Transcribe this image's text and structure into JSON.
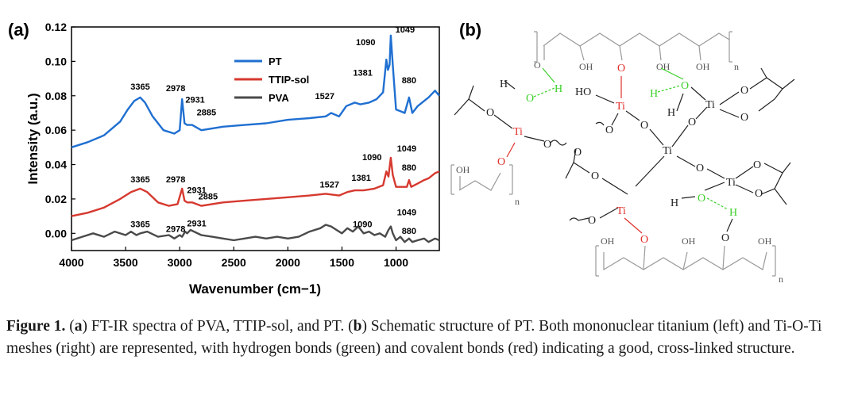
{
  "panel_a_label": "(a)",
  "panel_b_label": "(b)",
  "chart_data": {
    "type": "line",
    "title": "",
    "xlabel": "Wavenumber (cm−1)",
    "ylabel": "Intensity (a.u.)",
    "xlim": [
      4000,
      600
    ],
    "ylim": [
      -0.01,
      0.12
    ],
    "xticks": [
      4000,
      3500,
      3000,
      2500,
      2000,
      1500,
      1000
    ],
    "xtick_labels": [
      "4000",
      "3500",
      "3000",
      "2500",
      "2000",
      "1500",
      "1000"
    ],
    "yticks": [
      0.0,
      0.02,
      0.04,
      0.06,
      0.08,
      0.1,
      0.12
    ],
    "ytick_labels": [
      "0.00",
      "0.02",
      "0.04",
      "0.06",
      "0.08",
      "0.10",
      "0.12"
    ],
    "legend_position": "upper-center",
    "series": [
      {
        "name": "PT",
        "color": "#1f6fd1",
        "x": [
          4000,
          3850,
          3700,
          3550,
          3480,
          3420,
          3365,
          3320,
          3250,
          3150,
          3050,
          3000,
          2978,
          2955,
          2931,
          2885,
          2800,
          2600,
          2400,
          2200,
          2000,
          1800,
          1650,
          1600,
          1527,
          1460,
          1381,
          1330,
          1250,
          1180,
          1120,
          1090,
          1075,
          1060,
          1049,
          1030,
          1000,
          960,
          920,
          880,
          850,
          800,
          740,
          700,
          640,
          600
        ],
        "y": [
          0.05,
          0.053,
          0.057,
          0.065,
          0.072,
          0.077,
          0.079,
          0.076,
          0.068,
          0.06,
          0.058,
          0.06,
          0.078,
          0.064,
          0.063,
          0.063,
          0.06,
          0.062,
          0.063,
          0.064,
          0.066,
          0.067,
          0.068,
          0.07,
          0.068,
          0.074,
          0.076,
          0.075,
          0.076,
          0.078,
          0.082,
          0.101,
          0.095,
          0.098,
          0.115,
          0.098,
          0.072,
          0.071,
          0.07,
          0.079,
          0.07,
          0.074,
          0.077,
          0.079,
          0.083,
          0.08
        ]
      },
      {
        "name": "TTIP-sol",
        "color": "#d6392f",
        "x": [
          4000,
          3850,
          3700,
          3550,
          3450,
          3365,
          3300,
          3200,
          3100,
          3020,
          2978,
          2955,
          2931,
          2885,
          2800,
          2600,
          2400,
          2200,
          2000,
          1800,
          1650,
          1527,
          1450,
          1381,
          1300,
          1200,
          1120,
          1090,
          1070,
          1049,
          1030,
          1000,
          950,
          900,
          880,
          860,
          800,
          740,
          700,
          640,
          600
        ],
        "y": [
          0.01,
          0.012,
          0.015,
          0.02,
          0.024,
          0.026,
          0.024,
          0.018,
          0.016,
          0.017,
          0.026,
          0.019,
          0.018,
          0.018,
          0.016,
          0.018,
          0.019,
          0.02,
          0.021,
          0.022,
          0.023,
          0.022,
          0.024,
          0.025,
          0.025,
          0.026,
          0.028,
          0.036,
          0.033,
          0.044,
          0.034,
          0.027,
          0.027,
          0.027,
          0.031,
          0.027,
          0.029,
          0.031,
          0.032,
          0.035,
          0.036
        ]
      },
      {
        "name": "PVA",
        "color": "#4a4a4a",
        "x": [
          4000,
          3900,
          3800,
          3700,
          3600,
          3500,
          3450,
          3400,
          3365,
          3300,
          3200,
          3100,
          3050,
          3000,
          2978,
          2950,
          2931,
          2900,
          2800,
          2700,
          2600,
          2500,
          2400,
          2300,
          2200,
          2100,
          2000,
          1900,
          1800,
          1700,
          1650,
          1600,
          1550,
          1500,
          1450,
          1400,
          1350,
          1300,
          1250,
          1200,
          1150,
          1100,
          1070,
          1049,
          1030,
          1000,
          960,
          920,
          880,
          850,
          800,
          740,
          700,
          640,
          600
        ],
        "y": [
          -0.004,
          -0.002,
          0.0,
          -0.002,
          0.001,
          -0.001,
          0.001,
          -0.001,
          0.0,
          0.001,
          -0.002,
          -0.001,
          -0.003,
          -0.001,
          -0.002,
          0.001,
          0.0,
          0.002,
          -0.001,
          -0.002,
          -0.003,
          -0.004,
          -0.003,
          -0.002,
          -0.003,
          -0.002,
          -0.003,
          -0.002,
          0.001,
          0.003,
          0.005,
          0.004,
          0.002,
          0.0,
          0.003,
          0.001,
          0.004,
          0.0,
          0.001,
          -0.001,
          0.0,
          -0.002,
          0.002,
          0.004,
          0.0,
          -0.004,
          -0.002,
          -0.005,
          -0.003,
          -0.005,
          -0.004,
          -0.003,
          -0.005,
          -0.003,
          -0.004
        ]
      }
    ],
    "annotations": [
      {
        "text": "3365",
        "series": "PT",
        "x": 3365,
        "y": 0.079
      },
      {
        "text": "2978",
        "series": "PT",
        "x": 2978,
        "y": 0.078
      },
      {
        "text": "2931",
        "series": "PT",
        "x": 2931,
        "y": 0.063
      },
      {
        "text": "2885",
        "series": "PT",
        "x": 2885,
        "y": 0.063
      },
      {
        "text": "1527",
        "series": "PT",
        "x": 1527,
        "y": 0.068
      },
      {
        "text": "1381",
        "series": "PT",
        "x": 1381,
        "y": 0.076
      },
      {
        "text": "1090",
        "series": "PT",
        "x": 1090,
        "y": 0.101
      },
      {
        "text": "1049",
        "series": "PT",
        "x": 1049,
        "y": 0.115
      },
      {
        "text": "880",
        "series": "PT",
        "x": 880,
        "y": 0.079
      },
      {
        "text": "3365",
        "series": "TTIP-sol",
        "x": 3365,
        "y": 0.026
      },
      {
        "text": "2978",
        "series": "TTIP-sol",
        "x": 2978,
        "y": 0.026
      },
      {
        "text": "2931",
        "series": "TTIP-sol",
        "x": 2931,
        "y": 0.018
      },
      {
        "text": "2885",
        "series": "TTIP-sol",
        "x": 2885,
        "y": 0.018
      },
      {
        "text": "1527",
        "series": "TTIP-sol",
        "x": 1527,
        "y": 0.022
      },
      {
        "text": "1381",
        "series": "TTIP-sol",
        "x": 1381,
        "y": 0.025
      },
      {
        "text": "1090",
        "series": "TTIP-sol",
        "x": 1090,
        "y": 0.036
      },
      {
        "text": "1049",
        "series": "TTIP-sol",
        "x": 1049,
        "y": 0.044
      },
      {
        "text": "880",
        "series": "TTIP-sol",
        "x": 880,
        "y": 0.031
      },
      {
        "text": "3365",
        "series": "PVA",
        "x": 3365,
        "y": 0.0
      },
      {
        "text": "2978",
        "series": "PVA",
        "x": 2978,
        "y": -0.002
      },
      {
        "text": "2931",
        "series": "PVA",
        "x": 2931,
        "y": 0.0
      },
      {
        "text": "1090",
        "series": "PVA",
        "x": 1090,
        "y": -0.002
      },
      {
        "text": "1049",
        "series": "PVA",
        "x": 1049,
        "y": 0.004
      },
      {
        "text": "880",
        "series": "PVA",
        "x": 880,
        "y": -0.003
      }
    ]
  },
  "structure_labels": {
    "oh": "OH",
    "ti": "Ti",
    "o": "O",
    "h": "H",
    "ho": "HO",
    "n": "n"
  },
  "caption": {
    "figure_label": "Figure 1.",
    "seg1": " (",
    "a": "a",
    "seg2": ") FT-IR spectra of PVA, TTIP-sol, and PT. (",
    "b": "b",
    "seg3": ") Schematic structure of PT. Both mononuclear titanium (left) and Ti-O-Ti meshes (right) are represented, with hydrogen bonds (green) and covalent bonds (red) indicating a good, cross-linked structure."
  },
  "colors": {
    "green_bond": "#3ccf2a",
    "red_bond": "#e0302a",
    "gray_chain": "#9a9a9a"
  }
}
